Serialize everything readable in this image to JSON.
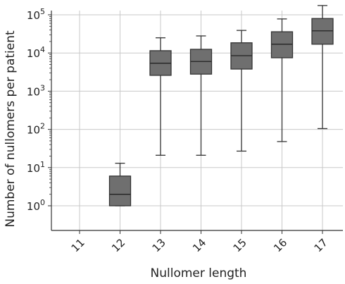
{
  "chart_data": {
    "type": "box",
    "xlabel": "Nullomer length",
    "ylabel": "Number of nullomers  per patient",
    "yscale": "log",
    "ylim": [
      0.6,
      300000
    ],
    "y_ticks": [
      {
        "value": 1,
        "base": "10",
        "exp": "0"
      },
      {
        "value": 10,
        "base": "10",
        "exp": "1"
      },
      {
        "value": 100,
        "base": "10",
        "exp": "2"
      },
      {
        "value": 1000,
        "base": "10",
        "exp": "3"
      },
      {
        "value": 10000,
        "base": "10",
        "exp": "4"
      },
      {
        "value": 100000,
        "base": "10",
        "exp": "5"
      }
    ],
    "categories": [
      "11",
      "12",
      "13",
      "14",
      "15",
      "16",
      "17"
    ],
    "grid": true,
    "box_color": "#6f6f6f",
    "boxes": [
      null,
      {
        "min": 1,
        "q1": 1,
        "median": 2,
        "q3": 6,
        "max": 13
      },
      {
        "min": 21,
        "q1": 2600,
        "median": 5400,
        "q3": 11500,
        "max": 25000
      },
      {
        "min": 21,
        "q1": 2800,
        "median": 6000,
        "q3": 12500,
        "max": 28000
      },
      {
        "min": 27,
        "q1": 3800,
        "median": 8500,
        "q3": 18500,
        "max": 39000
      },
      {
        "min": 48,
        "q1": 7500,
        "median": 17000,
        "q3": 36000,
        "max": 78000
      },
      {
        "min": 105,
        "q1": 17000,
        "median": 38000,
        "q3": 80000,
        "max": 175000
      }
    ]
  }
}
